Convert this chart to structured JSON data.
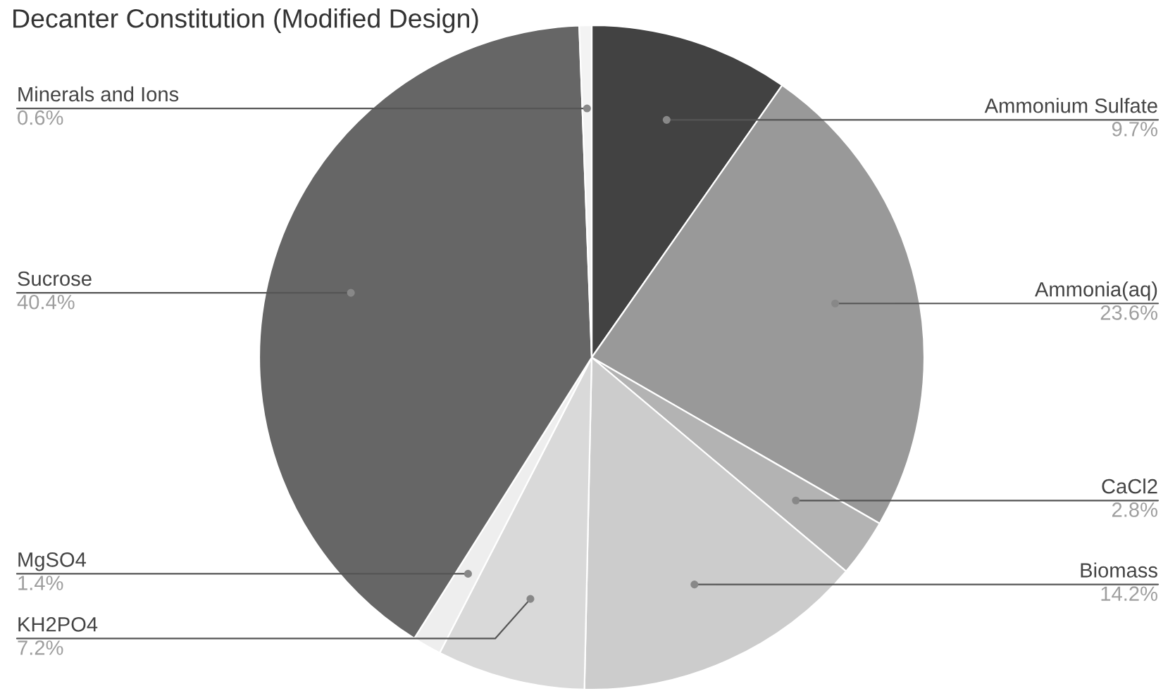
{
  "chart_data": {
    "type": "pie",
    "title": "Decanter Constitution (Modified Design)",
    "categories": [
      "Ammonium Sulfate",
      "Ammonia(aq)",
      "CaCl2",
      "Biomass",
      "KH2PO4",
      "MgSO4",
      "Sucrose",
      "Minerals and Ions"
    ],
    "values": [
      9.7,
      23.6,
      2.8,
      14.2,
      7.2,
      1.4,
      40.4,
      0.6
    ],
    "colors": [
      "#424242",
      "#999999",
      "#b3b3b3",
      "#cccccc",
      "#d9d9d9",
      "#eeeeee",
      "#666666",
      "#f3f3f3"
    ],
    "value_labels": [
      "9.7%",
      "23.6%",
      "2.8%",
      "14.2%",
      "7.2%",
      "1.4%",
      "40.4%",
      "0.6%"
    ]
  }
}
